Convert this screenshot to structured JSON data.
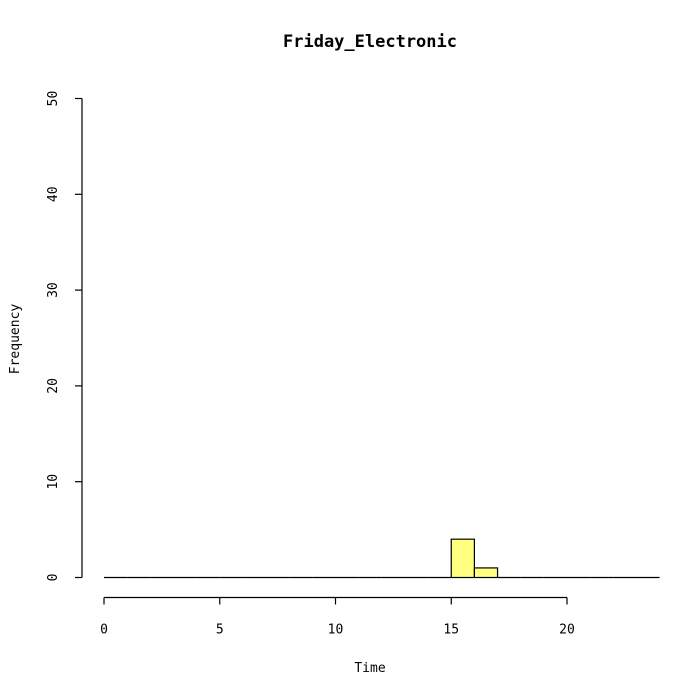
{
  "chart_data": {
    "type": "bar",
    "title": "Friday_Electronic",
    "xlabel": "Time",
    "ylabel": "Frequency",
    "xlim": [
      0,
      24
    ],
    "ylim": [
      0,
      50
    ],
    "x_ticks": [
      "0",
      "5",
      "10",
      "15",
      "20"
    ],
    "y_ticks": [
      "0",
      "10",
      "20",
      "30",
      "40",
      "50"
    ],
    "bins": [
      {
        "start": 0,
        "end": 1,
        "count": 0
      },
      {
        "start": 1,
        "end": 2,
        "count": 0
      },
      {
        "start": 2,
        "end": 3,
        "count": 0
      },
      {
        "start": 3,
        "end": 4,
        "count": 0
      },
      {
        "start": 4,
        "end": 5,
        "count": 0
      },
      {
        "start": 5,
        "end": 6,
        "count": 0
      },
      {
        "start": 6,
        "end": 7,
        "count": 0
      },
      {
        "start": 7,
        "end": 8,
        "count": 0
      },
      {
        "start": 8,
        "end": 9,
        "count": 0
      },
      {
        "start": 9,
        "end": 10,
        "count": 0
      },
      {
        "start": 10,
        "end": 11,
        "count": 0
      },
      {
        "start": 11,
        "end": 12,
        "count": 0
      },
      {
        "start": 12,
        "end": 13,
        "count": 0
      },
      {
        "start": 13,
        "end": 14,
        "count": 0
      },
      {
        "start": 14,
        "end": 15,
        "count": 0
      },
      {
        "start": 15,
        "end": 16,
        "count": 4
      },
      {
        "start": 16,
        "end": 17,
        "count": 1
      },
      {
        "start": 17,
        "end": 18,
        "count": 0
      },
      {
        "start": 18,
        "end": 19,
        "count": 0
      },
      {
        "start": 19,
        "end": 20,
        "count": 0
      },
      {
        "start": 20,
        "end": 21,
        "count": 0
      },
      {
        "start": 21,
        "end": 22,
        "count": 0
      },
      {
        "start": 22,
        "end": 23,
        "count": 0
      },
      {
        "start": 23,
        "end": 24,
        "count": 0
      }
    ],
    "bar_color": "#FFFF80",
    "border_color": "#000000",
    "grid": false,
    "legend": "none"
  }
}
